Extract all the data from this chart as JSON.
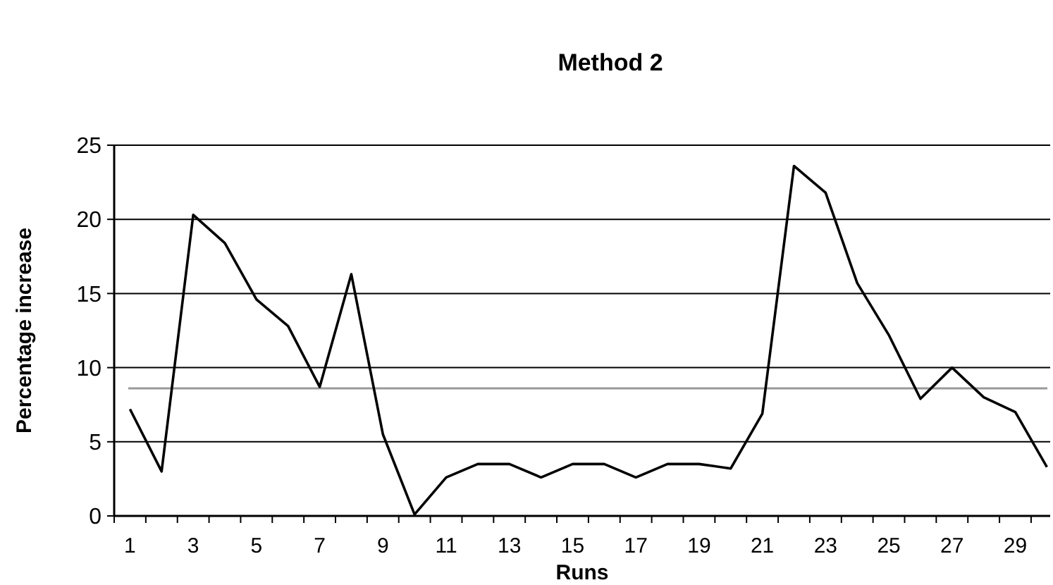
{
  "chart_data": {
    "type": "line",
    "title": "Method 2",
    "xlabel": "Runs",
    "ylabel": "Percentage increase",
    "categories": [
      "1",
      null,
      "3",
      null,
      "5",
      null,
      "7",
      null,
      "9",
      null,
      "11",
      null,
      "13",
      null,
      "15",
      null,
      "17",
      null,
      "19",
      null,
      "21",
      null,
      "23",
      null,
      "25",
      null,
      "27",
      null,
      "29",
      null
    ],
    "series": [
      {
        "color": "#000000",
        "values": [
          7.2,
          3,
          20.3,
          18.4,
          14.6,
          12.8,
          8.7,
          16.3,
          5.5,
          0.1,
          2.6,
          3.5,
          3.5,
          2.6,
          3.5,
          3.5,
          2.6,
          3.5,
          3.5,
          3.2,
          6.9,
          23.6,
          21.8,
          15.7,
          12.2,
          7.9,
          10,
          8,
          7,
          3.3
        ]
      }
    ],
    "ylim": [
      0,
      25
    ],
    "yticks": [
      0,
      5,
      10,
      15,
      20,
      25
    ],
    "grid": "y",
    "marker": "none",
    "line_style": "solid",
    "ref_lines": [
      {
        "axis": "y",
        "value": 8.6,
        "color": "#999999"
      }
    ]
  }
}
